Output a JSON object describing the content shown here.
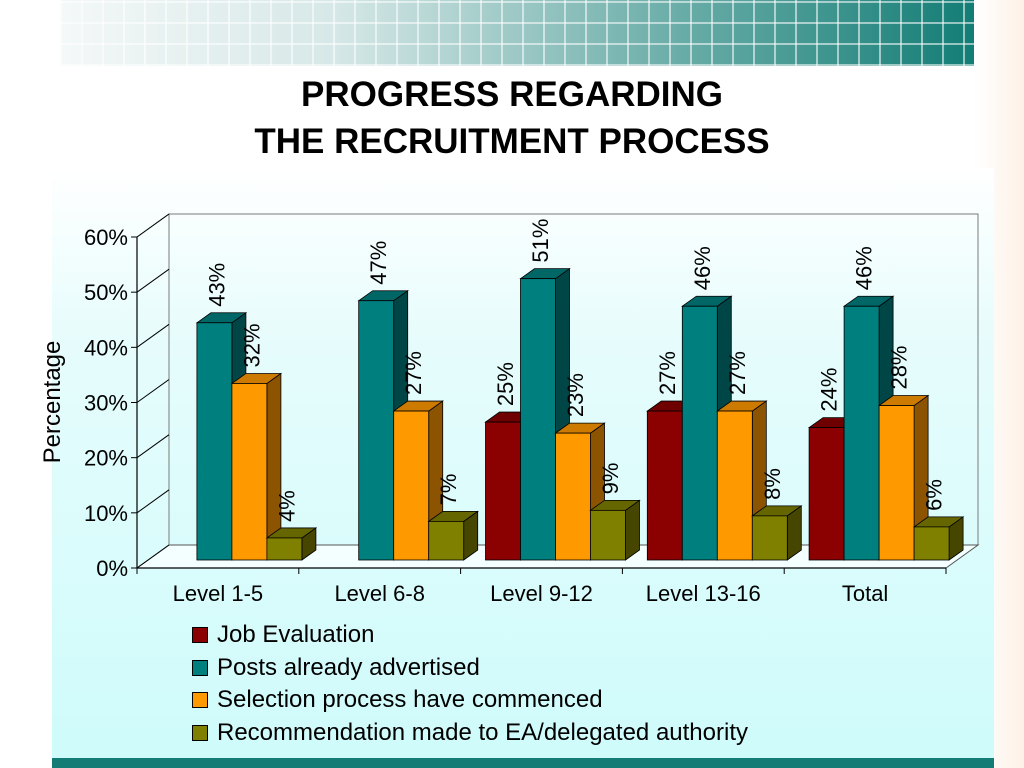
{
  "title_line1": "PROGRESS REGARDING",
  "title_line2": "THE RECRUITMENT PROCESS",
  "colors": {
    "job_evaluation": "#8b0000",
    "posts_advertised": "#007f7f",
    "selection_commenced": "#ff9900",
    "recommendation_made": "#808000"
  },
  "chart_data": {
    "type": "bar",
    "title": "PROGRESS REGARDING THE RECRUITMENT PROCESS",
    "ylabel": "Percentage",
    "xlabel": "",
    "ylim": [
      0,
      60
    ],
    "y_ticks": [
      "0%",
      "10%",
      "20%",
      "30%",
      "40%",
      "50%",
      "60%"
    ],
    "categories": [
      "Level 1-5",
      "Level 6-8",
      "Level 9-12",
      "Level 13-16",
      "Total"
    ],
    "series": [
      {
        "name": "Job Evaluation",
        "color": "#8b0000",
        "values": [
          null,
          null,
          25,
          27,
          24
        ],
        "labels": [
          "",
          "",
          "25%",
          "27%",
          "24%"
        ]
      },
      {
        "name": "Posts already advertised",
        "color": "#007f7f",
        "values": [
          43,
          47,
          51,
          46,
          46
        ],
        "labels": [
          "43%",
          "47%",
          "51%",
          "46%",
          "46%"
        ]
      },
      {
        "name": "Selection process have commenced",
        "color": "#ff9900",
        "values": [
          32,
          27,
          23,
          27,
          28
        ],
        "labels": [
          "32%",
          "27%",
          "23%",
          "27%",
          "28%"
        ]
      },
      {
        "name": "Recommendation made to EA/delegated authority",
        "color": "#808000",
        "values": [
          4,
          7,
          9,
          8,
          6
        ],
        "labels": [
          "4%",
          "7%",
          "9%",
          "8%",
          "6%"
        ]
      }
    ],
    "legend_position": "bottom",
    "grid": false,
    "style": "3d-clustered-column"
  }
}
